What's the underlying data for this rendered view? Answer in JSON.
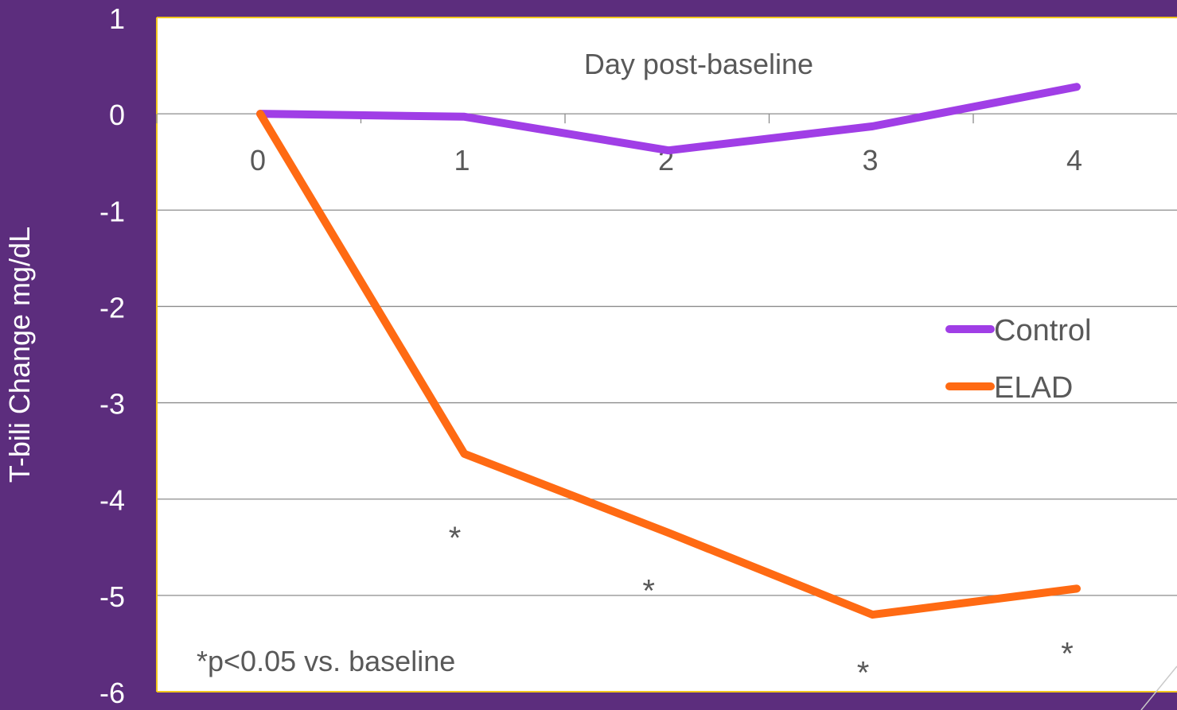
{
  "colors": {
    "background": "#5c2d7d",
    "plot_area": "#ffffff",
    "plot_border": "#f2c71f",
    "gridline": "#8c8c8c",
    "axis_tick_text": "#ffffff",
    "inner_text": "#595959",
    "control": "#a03ee6",
    "elad": "#ff6a13"
  },
  "chart_data": {
    "type": "line",
    "title": "",
    "xlabel": "Day post-baseline",
    "ylabel": "T-bili Change mg/dL",
    "x": [
      0,
      1,
      2,
      3,
      4
    ],
    "x_tick_labels": [
      "0",
      "1",
      "2",
      "3",
      "4"
    ],
    "ylim": [
      -6,
      1
    ],
    "y_ticks": [
      1,
      0,
      -1,
      -2,
      -3,
      -4,
      -5,
      -6
    ],
    "y_tick_labels": [
      "1",
      "0",
      "-1",
      "-2",
      "-3",
      "-4",
      "-5",
      "-6"
    ],
    "grid": true,
    "legend_position": "right",
    "series": [
      {
        "name": "Control",
        "values": [
          0,
          -0.03,
          -0.38,
          -0.13,
          0.28
        ]
      },
      {
        "name": "ELAD",
        "values": [
          0,
          -3.53,
          -4.35,
          -5.2,
          -4.93
        ]
      }
    ],
    "significance_marks": [
      {
        "text": "*",
        "x": 1,
        "y": -4.35
      },
      {
        "text": "*",
        "x": 1.95,
        "y": -4.9
      },
      {
        "text": "*",
        "x": 3,
        "y": -5.75
      },
      {
        "text": "*",
        "x": 4,
        "y": -5.55
      }
    ],
    "footnote": "*p<0.05 vs. baseline"
  }
}
